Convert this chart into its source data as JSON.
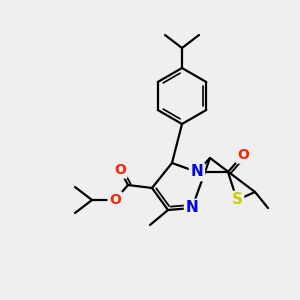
{
  "bg_color": "#efefef",
  "atom_colors": {
    "N": "#0000ff",
    "O": "#ff2200",
    "S": "#cccc00"
  },
  "bond_color": "#000000",
  "bond_width": 1.6,
  "font_size": 10
}
